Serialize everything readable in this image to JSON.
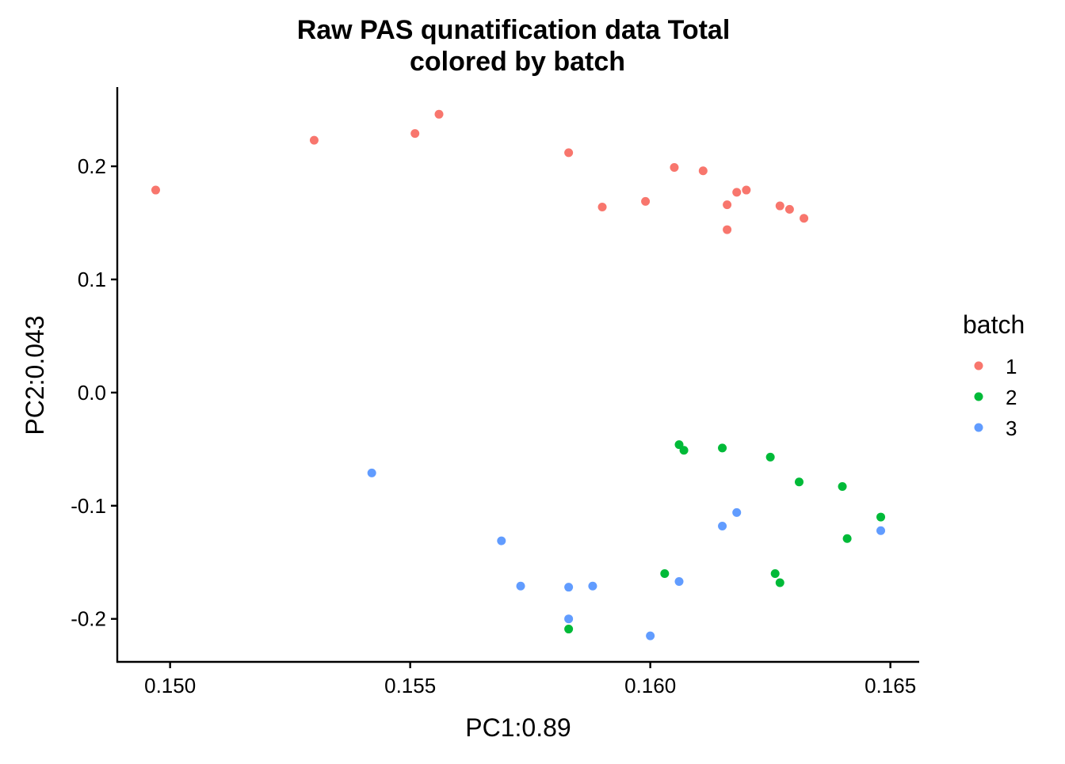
{
  "chart_data": {
    "type": "scatter",
    "title": "Raw PAS qunatification data Total",
    "subtitle": "colored by batch",
    "xlabel": "PC1:0.89",
    "ylabel": "PC2:0.043",
    "xlim": [
      0.1489,
      0.1656
    ],
    "ylim": [
      -0.238,
      0.27
    ],
    "x_ticks": [
      {
        "value": 0.15,
        "label": "0.150"
      },
      {
        "value": 0.155,
        "label": "0.155"
      },
      {
        "value": 0.16,
        "label": "0.160"
      },
      {
        "value": 0.165,
        "label": "0.165"
      }
    ],
    "y_ticks": [
      {
        "value": 0.2,
        "label": "0.2"
      },
      {
        "value": 0.1,
        "label": "0.1"
      },
      {
        "value": 0.0,
        "label": "0.0"
      },
      {
        "value": -0.1,
        "label": "-0.1"
      },
      {
        "value": -0.2,
        "label": "-0.2"
      }
    ],
    "grid": false,
    "legend": {
      "title": "batch",
      "position": "right"
    },
    "series": [
      {
        "name": "1",
        "color": "#F8766D",
        "points": [
          {
            "x": 0.1497,
            "y": 0.179
          },
          {
            "x": 0.153,
            "y": 0.223
          },
          {
            "x": 0.1551,
            "y": 0.229
          },
          {
            "x": 0.1556,
            "y": 0.246
          },
          {
            "x": 0.1583,
            "y": 0.212
          },
          {
            "x": 0.159,
            "y": 0.164
          },
          {
            "x": 0.1599,
            "y": 0.169
          },
          {
            "x": 0.1605,
            "y": 0.199
          },
          {
            "x": 0.1611,
            "y": 0.196
          },
          {
            "x": 0.1616,
            "y": 0.166
          },
          {
            "x": 0.1616,
            "y": 0.144
          },
          {
            "x": 0.1618,
            "y": 0.177
          },
          {
            "x": 0.162,
            "y": 0.179
          },
          {
            "x": 0.1627,
            "y": 0.165
          },
          {
            "x": 0.1629,
            "y": 0.162
          },
          {
            "x": 0.1632,
            "y": 0.154
          }
        ]
      },
      {
        "name": "2",
        "color": "#00BA38",
        "points": [
          {
            "x": 0.1606,
            "y": -0.046
          },
          {
            "x": 0.1607,
            "y": -0.051
          },
          {
            "x": 0.1615,
            "y": -0.049
          },
          {
            "x": 0.1625,
            "y": -0.057
          },
          {
            "x": 0.1631,
            "y": -0.079
          },
          {
            "x": 0.164,
            "y": -0.083
          },
          {
            "x": 0.1648,
            "y": -0.11
          },
          {
            "x": 0.1641,
            "y": -0.129
          },
          {
            "x": 0.1603,
            "y": -0.16
          },
          {
            "x": 0.1626,
            "y": -0.16
          },
          {
            "x": 0.1627,
            "y": -0.168
          },
          {
            "x": 0.1583,
            "y": -0.209
          }
        ]
      },
      {
        "name": "3",
        "color": "#619CFF",
        "points": [
          {
            "x": 0.1542,
            "y": -0.071
          },
          {
            "x": 0.1569,
            "y": -0.131
          },
          {
            "x": 0.1573,
            "y": -0.171
          },
          {
            "x": 0.1583,
            "y": -0.172
          },
          {
            "x": 0.1588,
            "y": -0.171
          },
          {
            "x": 0.1583,
            "y": -0.2
          },
          {
            "x": 0.16,
            "y": -0.215
          },
          {
            "x": 0.1606,
            "y": -0.167
          },
          {
            "x": 0.1615,
            "y": -0.118
          },
          {
            "x": 0.1618,
            "y": -0.106
          },
          {
            "x": 0.1648,
            "y": -0.122
          }
        ]
      }
    ]
  }
}
